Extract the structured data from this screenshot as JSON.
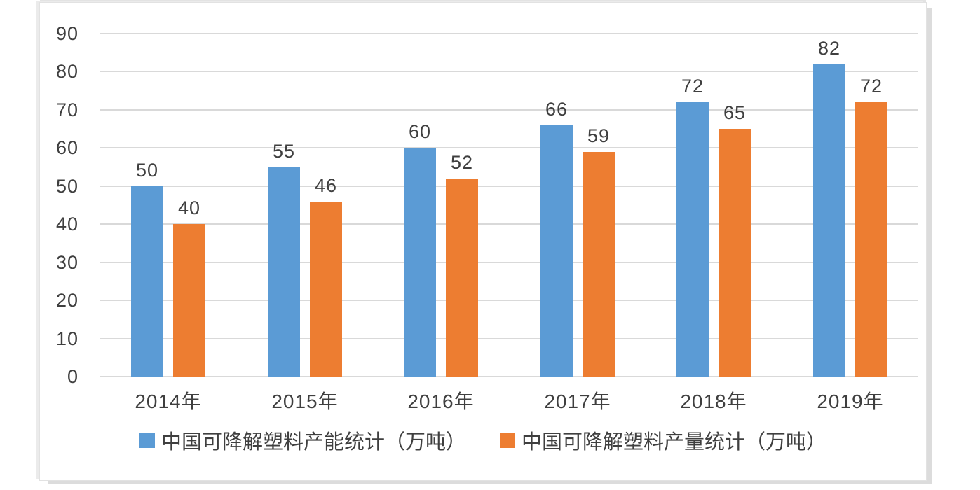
{
  "chart_data": {
    "type": "bar",
    "title": "",
    "xlabel": "",
    "ylabel": "",
    "categories": [
      "2014年",
      "2015年",
      "2016年",
      "2017年",
      "2018年",
      "2019年"
    ],
    "series": [
      {
        "name": "中国可降解塑料产能统计（万吨）",
        "color": "#5B9BD5",
        "values": [
          50,
          55,
          60,
          66,
          72,
          82
        ]
      },
      {
        "name": "中国可降解塑料产量统计（万吨）",
        "color": "#ED7D31",
        "values": [
          40,
          46,
          52,
          59,
          65,
          72
        ]
      }
    ],
    "ylim": [
      0,
      90
    ],
    "yticks": [
      0,
      10,
      20,
      30,
      40,
      50,
      60,
      70,
      80,
      90
    ],
    "grid": true,
    "value_labels": true,
    "legend_position": "bottom"
  },
  "colors": {
    "series_capacity": "#5B9BD5",
    "series_output": "#ED7D31",
    "gridline": "#D9D9D9",
    "axis_text": "#3F3F3F",
    "frame_border": "#E2E2E2"
  }
}
